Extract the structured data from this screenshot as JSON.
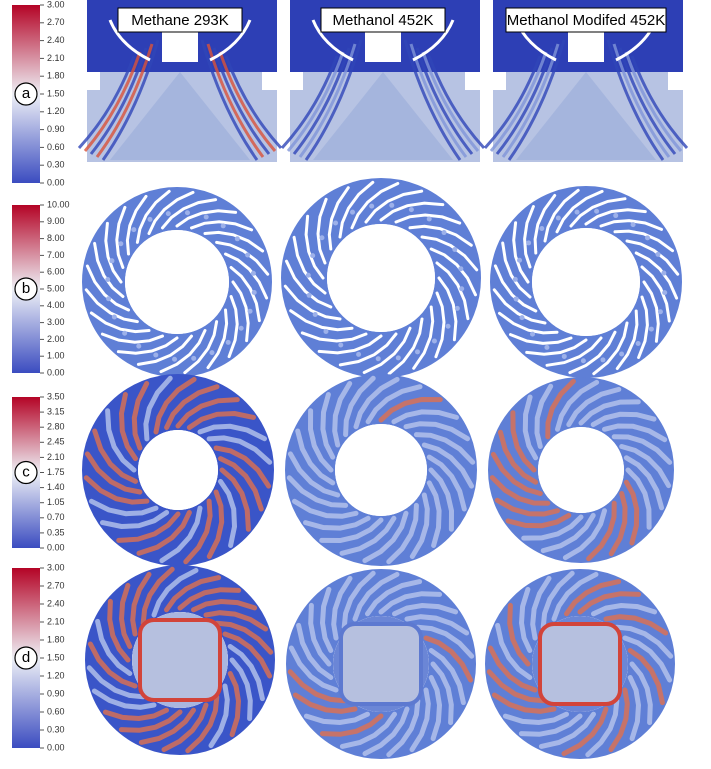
{
  "column_titles": [
    "Methane 293K",
    "Methanol 452K",
    "Methanol Modifed 452K"
  ],
  "rows": [
    {
      "label": "a",
      "colorbar": {
        "ticks": [
          {
            "value": 3,
            "label": "3.00"
          },
          {
            "value": 2.7,
            "label": "2.70"
          },
          {
            "value": 2.4,
            "label": "2.40"
          },
          {
            "value": 2.1,
            "label": "2.10"
          },
          {
            "value": 1.8,
            "label": "1.80"
          },
          {
            "value": 1.5,
            "label": "1.50"
          },
          {
            "value": 1.2,
            "label": "1.20"
          },
          {
            "value": 0.9,
            "label": "0.90"
          },
          {
            "value": 0.6,
            "label": "0.60"
          },
          {
            "value": 0.3,
            "label": "0.30"
          },
          {
            "value": 0,
            "label": "0.00"
          }
        ]
      }
    },
    {
      "label": "b",
      "colorbar": {
        "ticks": [
          {
            "value": 10,
            "label": "10.00"
          },
          {
            "value": 9,
            "label": "9.00"
          },
          {
            "value": 8,
            "label": "8.00"
          },
          {
            "value": 7,
            "label": "7.00"
          },
          {
            "value": 6,
            "label": "6.00"
          },
          {
            "value": 5,
            "label": "5.00"
          },
          {
            "value": 4,
            "label": "4.00"
          },
          {
            "value": 3,
            "label": "3.00"
          },
          {
            "value": 2,
            "label": "2.00"
          },
          {
            "value": 1,
            "label": "1.00"
          },
          {
            "value": 0,
            "label": "0.00"
          }
        ]
      }
    },
    {
      "label": "c",
      "colorbar": {
        "ticks": [
          {
            "value": 3.5,
            "label": "3.50"
          },
          {
            "value": 3.15,
            "label": "3.15"
          },
          {
            "value": 2.8,
            "label": "2.80"
          },
          {
            "value": 2.45,
            "label": "2.45"
          },
          {
            "value": 2.1,
            "label": "2.10"
          },
          {
            "value": 1.75,
            "label": "1.75"
          },
          {
            "value": 1.4,
            "label": "1.40"
          },
          {
            "value": 1.05,
            "label": "1.05"
          },
          {
            "value": 0.7,
            "label": "0.70"
          },
          {
            "value": 0.35,
            "label": "0.35"
          },
          {
            "value": 0,
            "label": "0.00"
          }
        ]
      }
    },
    {
      "label": "d",
      "colorbar": {
        "ticks": [
          {
            "value": 3,
            "label": "3.00"
          },
          {
            "value": 2.7,
            "label": "2.70"
          },
          {
            "value": 2.4,
            "label": "2.40"
          },
          {
            "value": 2.1,
            "label": "2.10"
          },
          {
            "value": 1.8,
            "label": "1.80"
          },
          {
            "value": 1.5,
            "label": "1.50"
          },
          {
            "value": 1.2,
            "label": "1.20"
          },
          {
            "value": 0.9,
            "label": "0.90"
          },
          {
            "value": 0.6,
            "label": "0.60"
          },
          {
            "value": 0.3,
            "label": "0.30"
          },
          {
            "value": 0,
            "label": "0.00"
          }
        ]
      }
    }
  ]
}
